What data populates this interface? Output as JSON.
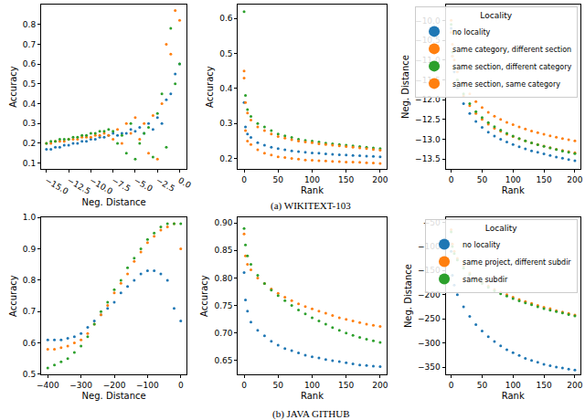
{
  "chart_data": [
    {
      "type": "scatter",
      "marker": "circle",
      "grid": false,
      "x_label": "Neg. Distance",
      "y_label": "Accuracy",
      "x": [
        -15,
        -14.5,
        -14,
        -13.5,
        -13,
        -12.5,
        -12,
        -11.5,
        -11,
        -10.5,
        -10,
        -9.5,
        -9,
        -8.5,
        -8,
        -7.5,
        -7,
        -6.5,
        -6,
        -5.5,
        -5,
        -4.5,
        -4,
        -3.5,
        -3,
        -2.5,
        -2,
        -1.5,
        -1,
        -0.5,
        0
      ],
      "xlim": [
        -15.6,
        0.8
      ],
      "xticks": [
        {
          "value": -15,
          "label": "−15.0"
        },
        {
          "value": -12.5,
          "label": "−12.5"
        },
        {
          "value": -10,
          "label": "−10.0"
        },
        {
          "value": -7.5,
          "label": "−7.5"
        },
        {
          "value": -5,
          "label": "−5.0"
        },
        {
          "value": -2.5,
          "label": "−2.5"
        },
        {
          "value": 0,
          "label": "0.0"
        }
      ],
      "ylim": [
        0.07,
        0.9
      ],
      "yticks": [
        0.1,
        0.2,
        0.3,
        0.4,
        0.5,
        0.6,
        0.7,
        0.8
      ],
      "series": [
        {
          "color": "#1f77b4",
          "values": [
            0.17,
            0.17,
            0.18,
            0.18,
            0.19,
            0.19,
            0.2,
            0.2,
            0.21,
            0.21,
            0.22,
            0.22,
            0.23,
            0.23,
            0.24,
            0.25,
            0.24,
            0.25,
            0.25,
            0.27,
            0.26,
            0.28,
            0.25,
            0.3,
            0.27,
            0.33,
            0.3,
            0.42,
            0.45,
            0.55,
            0.6
          ]
        },
        {
          "color": "#ff7f0e",
          "values": [
            0.2,
            0.2,
            0.21,
            0.21,
            0.21,
            0.22,
            0.22,
            0.22,
            0.23,
            0.23,
            0.23,
            0.24,
            0.24,
            0.25,
            0.24,
            0.22,
            0.27,
            0.2,
            0.3,
            0.25,
            0.33,
            0.22,
            0.3,
            0.15,
            0.34,
            0.12,
            0.4,
            0.7,
            0.65,
            0.87,
            0.82
          ]
        },
        {
          "color": "#2ca02c",
          "values": [
            0.2,
            0.21,
            0.21,
            0.22,
            0.22,
            0.22,
            0.23,
            0.23,
            0.24,
            0.24,
            0.25,
            0.25,
            0.26,
            0.26,
            0.27,
            0.26,
            0.2,
            0.24,
            0.15,
            0.3,
            0.12,
            0.2,
            0.25,
            0.28,
            0.13,
            0.35,
            0.45,
            0.18,
            0.78,
            0.5,
            0.6
          ]
        }
      ]
    },
    {
      "type": "scatter",
      "marker": "circle",
      "grid": false,
      "x_label": "Rank",
      "y_label": "Accuracy",
      "x": [
        0,
        2,
        5,
        10,
        20,
        30,
        40,
        50,
        60,
        70,
        80,
        90,
        100,
        110,
        120,
        130,
        140,
        150,
        160,
        170,
        180,
        190,
        200
      ],
      "xlim": [
        -9,
        209
      ],
      "xticks": [
        0,
        50,
        100,
        150,
        200
      ],
      "ylim": [
        0.17,
        0.64
      ],
      "yticks": [
        0.2,
        0.3,
        0.4,
        0.5,
        0.6
      ],
      "series": [
        {
          "color": "#1f77b4",
          "values": [
            0.36,
            0.29,
            0.27,
            0.26,
            0.245,
            0.238,
            0.232,
            0.228,
            0.225,
            0.222,
            0.22,
            0.218,
            0.216,
            0.215,
            0.213,
            0.212,
            0.211,
            0.21,
            0.209,
            0.208,
            0.207,
            0.206,
            0.205
          ]
        },
        {
          "color": "#ff7f0e",
          "values": [
            0.43,
            0.28,
            0.25,
            0.24,
            0.225,
            0.215,
            0.21,
            0.205,
            0.203,
            0.2,
            0.198,
            0.196,
            0.195,
            0.194,
            0.193,
            0.192,
            0.191,
            0.19,
            0.19,
            0.189,
            0.188,
            0.187,
            0.186
          ]
        },
        {
          "color": "#2ca02c",
          "values": [
            0.62,
            0.38,
            0.34,
            0.32,
            0.3,
            0.29,
            0.28,
            0.27,
            0.265,
            0.26,
            0.255,
            0.252,
            0.25,
            0.247,
            0.244,
            0.242,
            0.24,
            0.238,
            0.236,
            0.234,
            0.232,
            0.23,
            0.228
          ]
        },
        {
          "color": "#ff7f0e",
          "values": [
            0.45,
            0.36,
            0.33,
            0.31,
            0.29,
            0.28,
            0.27,
            0.263,
            0.258,
            0.254,
            0.25,
            0.247,
            0.245,
            0.242,
            0.24,
            0.238,
            0.236,
            0.234,
            0.232,
            0.23,
            0.228,
            0.226,
            0.224
          ]
        }
      ]
    },
    {
      "type": "scatter",
      "marker": "circle",
      "grid": false,
      "x_label": "Rank",
      "y_label": "Neg. Distance",
      "legend": "upper right",
      "legend_title": "Locality",
      "x": [
        0,
        2,
        5,
        10,
        20,
        30,
        40,
        50,
        60,
        70,
        80,
        90,
        100,
        110,
        120,
        130,
        140,
        150,
        160,
        170,
        180,
        190,
        200
      ],
      "xlim": [
        -9,
        209
      ],
      "xticks": [
        0,
        50,
        100,
        150,
        200
      ],
      "ylim": [
        -13.75,
        -9.6
      ],
      "yticks": [
        {
          "value": -13.5,
          "label": "−13.5"
        },
        {
          "value": -13,
          "label": "−13.0"
        },
        {
          "value": -12.5,
          "label": "−12.5"
        },
        {
          "value": -12,
          "label": "−12.0"
        },
        {
          "value": -11.5,
          "label": "−11.5"
        },
        {
          "value": -11,
          "label": "−11.0"
        },
        {
          "value": -10.5,
          "label": "−10.5"
        },
        {
          "value": -10,
          "label": "−10.0"
        }
      ],
      "series": [
        {
          "name": "no locality",
          "color": "#1f77b4",
          "values": [
            -10.2,
            -10.9,
            -11.3,
            -11.7,
            -12.1,
            -12.35,
            -12.55,
            -12.7,
            -12.82,
            -12.92,
            -13.0,
            -13.07,
            -13.13,
            -13.19,
            -13.24,
            -13.29,
            -13.33,
            -13.37,
            -13.41,
            -13.45,
            -13.48,
            -13.51,
            -13.54
          ]
        },
        {
          "name": "same category, different section",
          "color": "#ff7f0e",
          "values": [
            -10.3,
            -10.9,
            -11.2,
            -11.5,
            -11.9,
            -12.15,
            -12.35,
            -12.5,
            -12.62,
            -12.72,
            -12.8,
            -12.87,
            -12.93,
            -12.99,
            -13.04,
            -13.09,
            -13.13,
            -13.17,
            -13.21,
            -13.25,
            -13.28,
            -13.31,
            -13.34
          ]
        },
        {
          "name": "same section, different category",
          "color": "#2ca02c",
          "values": [
            -10.1,
            -10.8,
            -11.2,
            -11.5,
            -11.85,
            -12.1,
            -12.3,
            -12.45,
            -12.58,
            -12.68,
            -12.77,
            -12.85,
            -12.92,
            -12.98,
            -13.04,
            -13.09,
            -13.14,
            -13.18,
            -13.22,
            -13.26,
            -13.3,
            -13.33,
            -13.36
          ]
        },
        {
          "name": "same section, same category",
          "color": "#ff7f0e",
          "values": [
            -10.0,
            -10.6,
            -11.0,
            -11.3,
            -11.6,
            -11.85,
            -12.05,
            -12.2,
            -12.32,
            -12.42,
            -12.5,
            -12.57,
            -12.63,
            -12.69,
            -12.74,
            -12.79,
            -12.83,
            -12.87,
            -12.91,
            -12.95,
            -12.98,
            -13.01,
            -13.04
          ]
        }
      ]
    },
    {
      "type": "scatter",
      "marker": "circle",
      "grid": false,
      "x_label": "Neg. Distance",
      "y_label": "Accuracy",
      "x": [
        -400,
        -380,
        -360,
        -340,
        -320,
        -300,
        -280,
        -260,
        -240,
        -220,
        -200,
        -180,
        -160,
        -140,
        -120,
        -100,
        -80,
        -60,
        -40,
        -20,
        0
      ],
      "xlim": [
        -420,
        18
      ],
      "xticks": [
        {
          "value": -400,
          "label": "−400"
        },
        {
          "value": -300,
          "label": "−300"
        },
        {
          "value": -200,
          "label": "−200"
        },
        {
          "value": -100,
          "label": "−100"
        },
        0
      ],
      "ylim": [
        0.5,
        1.0
      ],
      "yticks": [
        0.5,
        0.6,
        0.7,
        0.8,
        0.9,
        {
          "value": 1.0,
          "label": "1.0"
        }
      ],
      "series": [
        {
          "color": "#1f77b4",
          "values": [
            0.61,
            0.61,
            0.61,
            0.615,
            0.62,
            0.63,
            0.65,
            0.67,
            0.69,
            0.71,
            0.73,
            0.76,
            0.78,
            0.8,
            0.82,
            0.83,
            0.83,
            0.82,
            0.8,
            0.71,
            0.67
          ]
        },
        {
          "color": "#ff7f0e",
          "values": [
            0.58,
            0.58,
            0.585,
            0.59,
            0.6,
            0.61,
            0.63,
            0.66,
            0.69,
            0.72,
            0.76,
            0.79,
            0.82,
            0.86,
            0.89,
            0.92,
            0.94,
            0.96,
            0.97,
            0.98,
            0.9
          ]
        },
        {
          "color": "#2ca02c",
          "values": [
            0.52,
            0.53,
            0.54,
            0.55,
            0.57,
            0.59,
            0.62,
            0.66,
            0.7,
            0.73,
            0.77,
            0.8,
            0.84,
            0.87,
            0.9,
            0.93,
            0.95,
            0.97,
            0.98,
            0.98,
            0.98
          ]
        }
      ]
    },
    {
      "type": "scatter",
      "marker": "circle",
      "grid": false,
      "x_label": "Rank",
      "y_label": "Accuracy",
      "x": [
        0,
        2,
        5,
        10,
        20,
        30,
        40,
        50,
        60,
        70,
        80,
        90,
        100,
        110,
        120,
        130,
        140,
        150,
        160,
        170,
        180,
        190,
        200
      ],
      "xlim": [
        -9,
        209
      ],
      "xticks": [
        0,
        50,
        100,
        150,
        200
      ],
      "ylim": [
        0.625,
        0.91
      ],
      "yticks": [
        0.65,
        {
          "value": 0.7,
          "label": "0.70"
        },
        0.75,
        {
          "value": 0.8,
          "label": "0.80"
        },
        0.85,
        {
          "value": 0.9,
          "label": "0.90"
        }
      ],
      "series": [
        {
          "color": "#1f77b4",
          "values": [
            0.81,
            0.76,
            0.74,
            0.72,
            0.705,
            0.695,
            0.685,
            0.678,
            0.672,
            0.668,
            0.664,
            0.66,
            0.657,
            0.655,
            0.652,
            0.65,
            0.648,
            0.646,
            0.644,
            0.642,
            0.641,
            0.64,
            0.639
          ]
        },
        {
          "color": "#ff7f0e",
          "values": [
            0.88,
            0.84,
            0.825,
            0.815,
            0.8,
            0.79,
            0.78,
            0.772,
            0.765,
            0.759,
            0.753,
            0.748,
            0.744,
            0.74,
            0.736,
            0.732,
            0.728,
            0.725,
            0.722,
            0.719,
            0.716,
            0.714,
            0.712
          ]
        },
        {
          "color": "#2ca02c",
          "values": [
            0.89,
            0.86,
            0.84,
            0.825,
            0.805,
            0.79,
            0.778,
            0.768,
            0.759,
            0.75,
            0.742,
            0.735,
            0.728,
            0.722,
            0.716,
            0.71,
            0.705,
            0.7,
            0.696,
            0.692,
            0.689,
            0.686,
            0.683
          ]
        }
      ]
    },
    {
      "type": "scatter",
      "marker": "circle",
      "grid": false,
      "x_label": "Rank",
      "y_label": "Neg. Distance",
      "legend": "upper right",
      "legend_title": "Locality",
      "x": [
        0,
        2,
        5,
        10,
        20,
        30,
        40,
        50,
        60,
        70,
        80,
        90,
        100,
        110,
        120,
        130,
        140,
        150,
        160,
        170,
        180,
        190,
        200
      ],
      "xlim": [
        -9,
        209
      ],
      "xticks": [
        0,
        50,
        100,
        150,
        200
      ],
      "ylim": [
        -365,
        -40
      ],
      "yticks": [
        {
          "value": -350,
          "label": "−350"
        },
        {
          "value": -300,
          "label": "−300"
        },
        {
          "value": -250,
          "label": "−250"
        },
        {
          "value": -200,
          "label": "−200"
        },
        {
          "value": -150,
          "label": "−150"
        },
        {
          "value": -100,
          "label": "−100"
        },
        {
          "value": -50,
          "label": "−50"
        }
      ],
      "series": [
        {
          "name": "no locality",
          "color": "#1f77b4",
          "values": [
            -110,
            -160,
            -180,
            -200,
            -225,
            -245,
            -262,
            -275,
            -287,
            -297,
            -306,
            -314,
            -320,
            -326,
            -332,
            -336,
            -340,
            -344,
            -347,
            -350,
            -352,
            -354,
            -356
          ]
        },
        {
          "name": "same project, different subdir",
          "color": "#ff7f0e",
          "values": [
            -65,
            -95,
            -110,
            -125,
            -140,
            -155,
            -165,
            -174,
            -182,
            -189,
            -195,
            -200,
            -205,
            -210,
            -214,
            -218,
            -222,
            -226,
            -229,
            -233,
            -236,
            -239,
            -242
          ]
        },
        {
          "name": "same subdir",
          "color": "#2ca02c",
          "values": [
            -70,
            -100,
            -115,
            -128,
            -145,
            -158,
            -168,
            -177,
            -185,
            -192,
            -198,
            -203,
            -208,
            -213,
            -217,
            -221,
            -225,
            -229,
            -232,
            -235,
            -238,
            -241,
            -244
          ]
        }
      ]
    }
  ],
  "captions": [
    "(a) WIKITEXT-103",
    "(b) JAVA GITHUB"
  ]
}
